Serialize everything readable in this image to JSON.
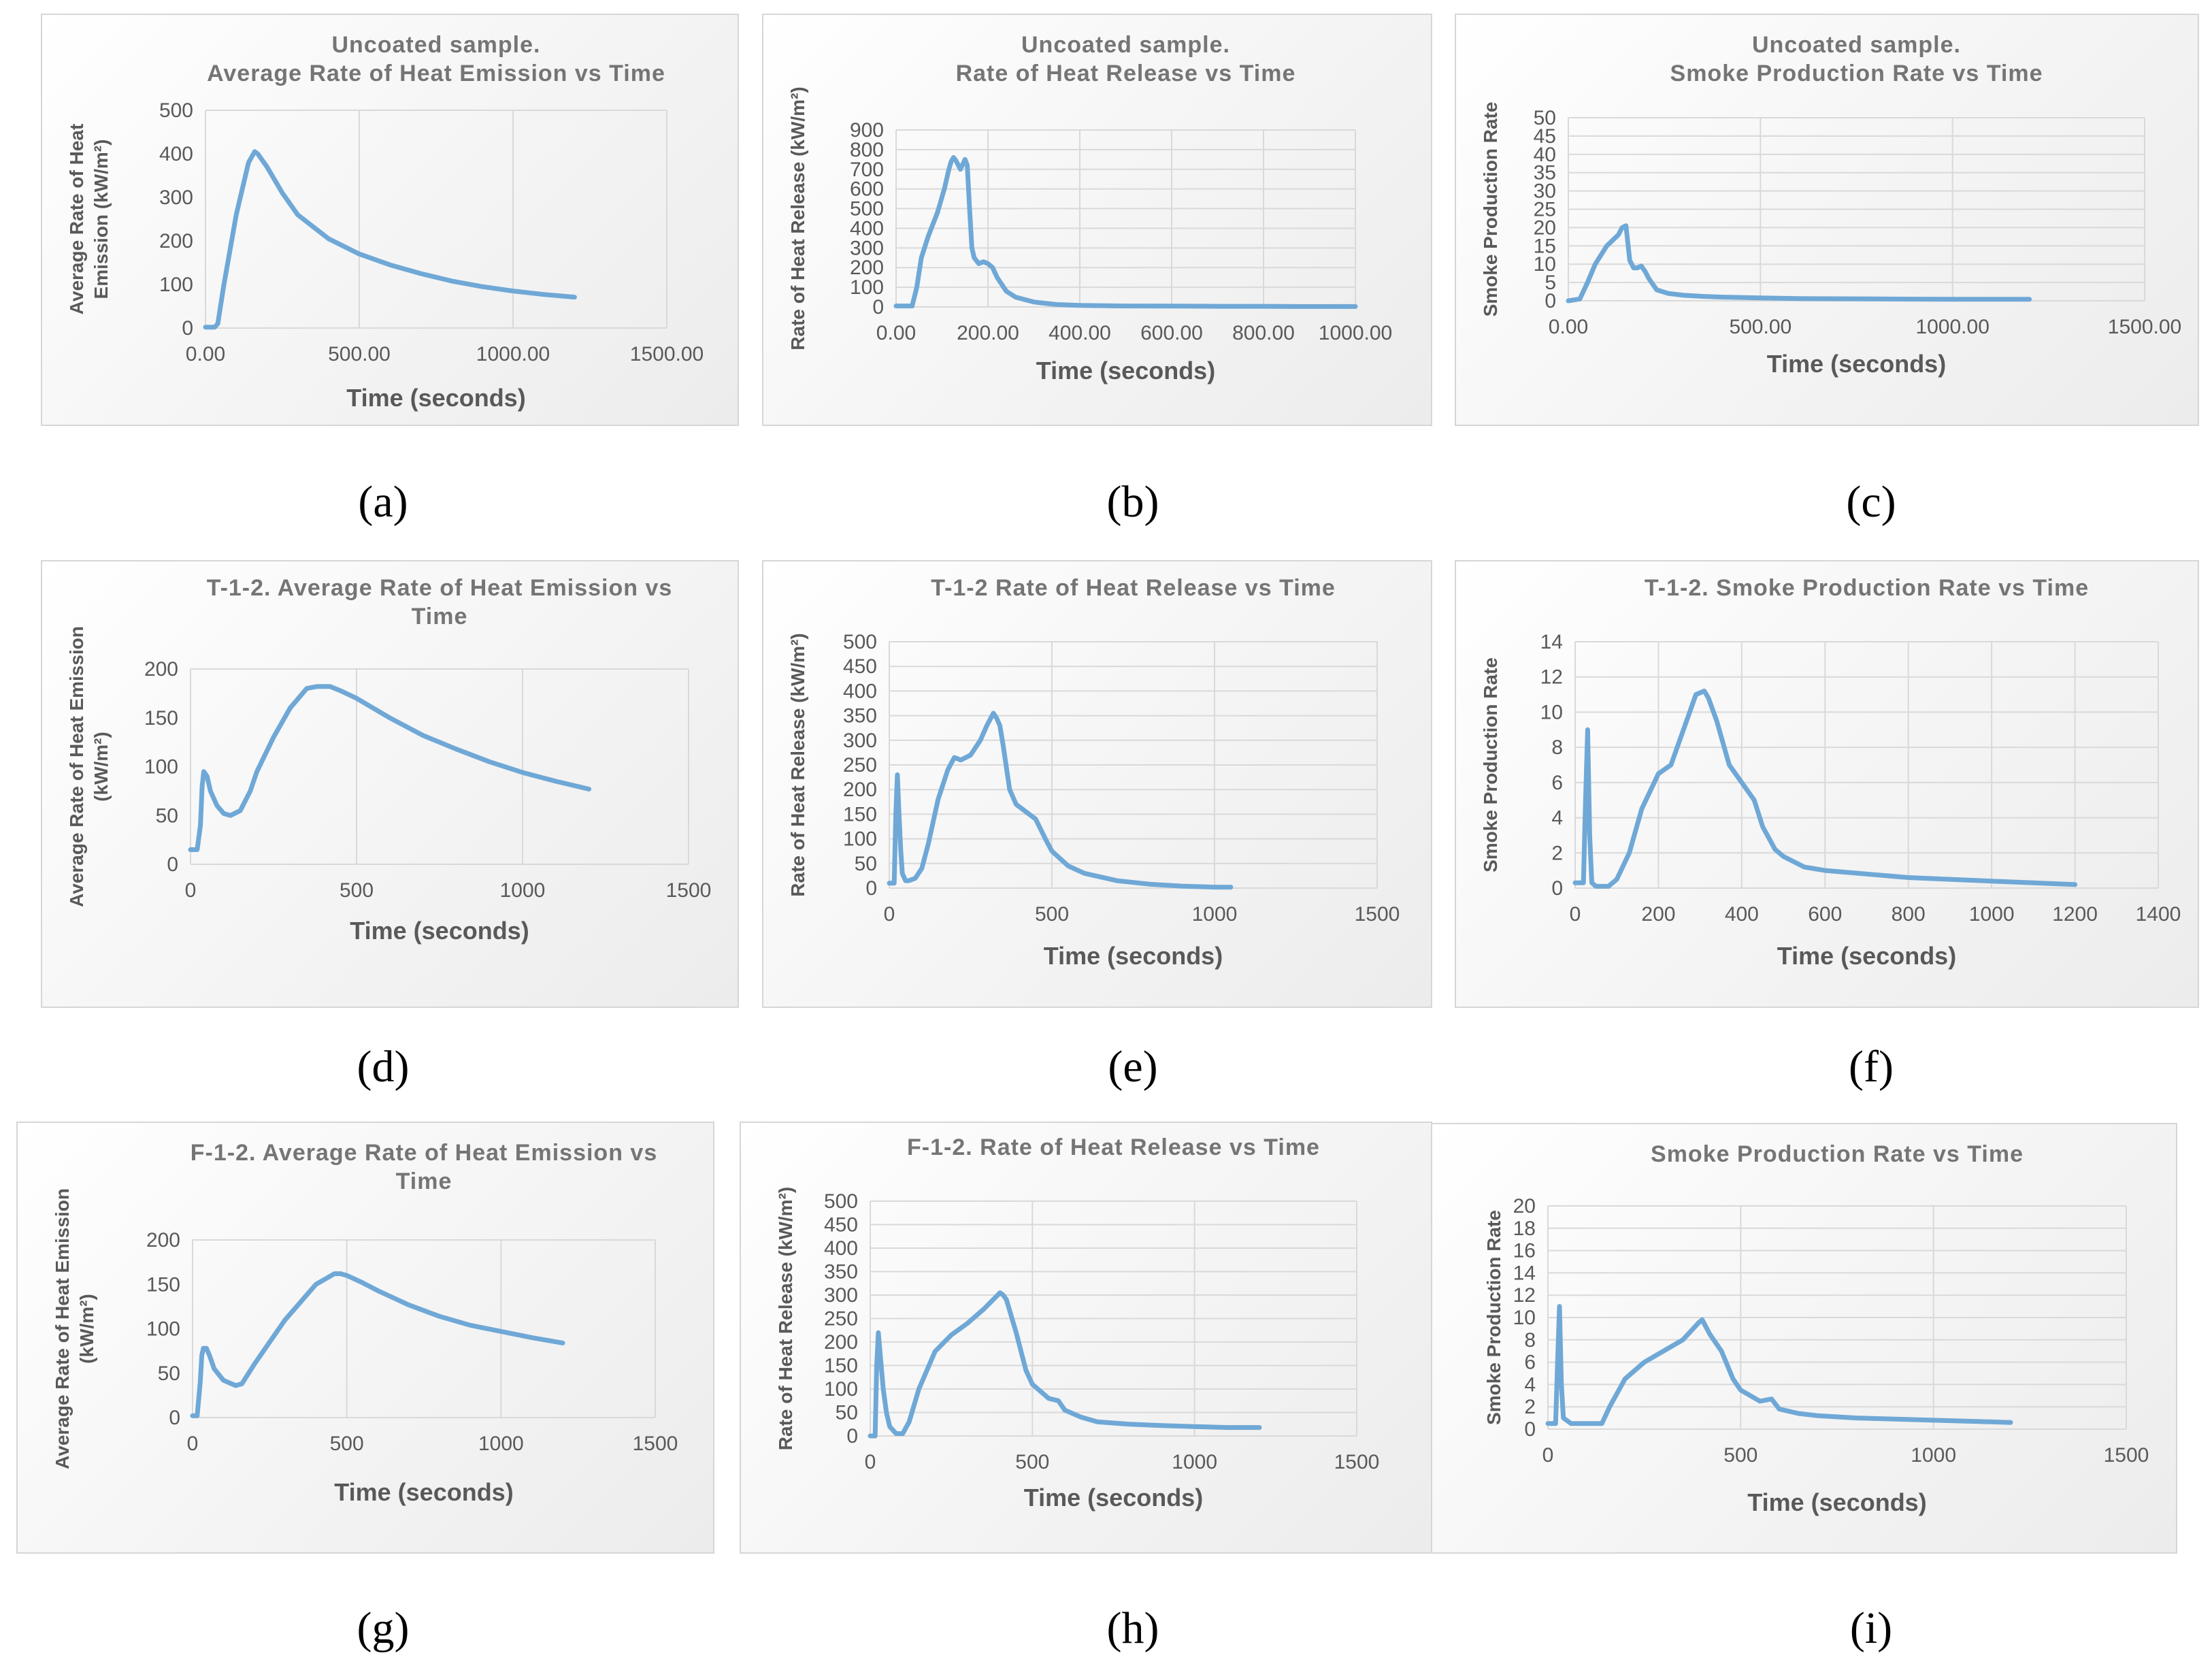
{
  "series_color": "#6fa8d6",
  "chart_data": [
    {
      "id": "a",
      "caption": "(a)",
      "type": "line",
      "title": [
        "Uncoated sample.",
        "Average Rate of Heat Emission vs Time"
      ],
      "xlabel": "Time (seconds)",
      "ylabel": [
        "Average Rate of Heat",
        "Emission (kW/m²)"
      ],
      "xlim": [
        0,
        1500
      ],
      "xticks": [
        0,
        500,
        1000,
        1500
      ],
      "xtick_labels": [
        "0.00",
        "500.00",
        "1000.00",
        "1500.00"
      ],
      "ylim": [
        0,
        500
      ],
      "yticks": [
        0,
        100,
        200,
        300,
        400,
        500
      ],
      "grid": "vertical",
      "x": [
        0,
        30,
        40,
        60,
        100,
        140,
        160,
        170,
        200,
        250,
        300,
        400,
        500,
        600,
        700,
        800,
        900,
        1000,
        1100,
        1200
      ],
      "y": [
        2,
        2,
        10,
        100,
        260,
        380,
        405,
        400,
        370,
        310,
        260,
        205,
        170,
        145,
        125,
        108,
        95,
        85,
        77,
        71
      ]
    },
    {
      "id": "b",
      "caption": "(b)",
      "type": "line",
      "title": [
        "Uncoated sample.",
        "Rate of Heat Release vs Time"
      ],
      "xlabel": "Time (seconds)",
      "ylabel": [
        "Rate of Heat Release (kW/m²)"
      ],
      "xlim": [
        0,
        1000
      ],
      "xticks": [
        0,
        200,
        400,
        600,
        800,
        1000
      ],
      "xtick_labels": [
        "0.00",
        "200.00",
        "400.00",
        "600.00",
        "800.00",
        "1000.00"
      ],
      "ylim": [
        0,
        900
      ],
      "yticks": [
        0,
        100,
        200,
        300,
        400,
        500,
        600,
        700,
        800,
        900
      ],
      "grid": "both",
      "x": [
        0,
        35,
        45,
        55,
        70,
        90,
        105,
        115,
        120,
        125,
        130,
        140,
        150,
        155,
        160,
        165,
        170,
        180,
        190,
        200,
        210,
        220,
        240,
        260,
        300,
        350,
        400,
        500,
        600,
        700,
        800,
        900,
        1000
      ],
      "y": [
        5,
        5,
        100,
        250,
        360,
        480,
        600,
        700,
        740,
        760,
        745,
        700,
        750,
        720,
        500,
        300,
        250,
        220,
        230,
        220,
        200,
        150,
        80,
        50,
        25,
        12,
        8,
        5,
        4,
        3,
        3,
        2,
        2
      ]
    },
    {
      "id": "c",
      "caption": "(c)",
      "type": "line",
      "title": [
        "Uncoated sample.",
        "Smoke Production Rate vs Time"
      ],
      "xlabel": "Time (seconds)",
      "ylabel": [
        "Smoke Production Rate"
      ],
      "xlim": [
        0,
        1500
      ],
      "xticks": [
        0,
        500,
        1000,
        1500
      ],
      "xtick_labels": [
        "0.00",
        "500.00",
        "1000.00",
        "1500.00"
      ],
      "ylim": [
        0,
        50
      ],
      "yticks": [
        0,
        5,
        10,
        15,
        20,
        25,
        30,
        35,
        40,
        45,
        50
      ],
      "grid": "both",
      "x": [
        0,
        30,
        50,
        70,
        100,
        130,
        140,
        150,
        160,
        170,
        180,
        190,
        200,
        210,
        230,
        260,
        300,
        350,
        400,
        500,
        600,
        800,
        1000,
        1200
      ],
      "y": [
        0,
        0.5,
        5,
        10,
        15,
        18,
        20,
        20.5,
        11,
        9,
        9,
        9.5,
        8,
        6,
        3,
        2,
        1.5,
        1.2,
        1,
        0.8,
        0.6,
        0.5,
        0.4,
        0.4
      ]
    },
    {
      "id": "d",
      "caption": "(d)",
      "type": "line",
      "title": [
        "T-1-2. Average Rate of Heat Emission vs",
        "Time"
      ],
      "xlabel": "Time (seconds)",
      "ylabel": [
        "Average Rate of Heat Emission",
        "(kW/m²)"
      ],
      "xlim": [
        0,
        1500
      ],
      "xticks": [
        0,
        500,
        1000,
        1500
      ],
      "xtick_labels": [
        "0",
        "500",
        "1000",
        "1500"
      ],
      "ylim": [
        0,
        200
      ],
      "yticks": [
        0,
        50,
        100,
        150,
        200
      ],
      "grid": "vertical",
      "x": [
        0,
        20,
        30,
        35,
        40,
        50,
        60,
        80,
        100,
        120,
        150,
        180,
        200,
        250,
        300,
        350,
        380,
        420,
        450,
        500,
        600,
        700,
        800,
        900,
        1000,
        1100,
        1200
      ],
      "y": [
        15,
        15,
        40,
        80,
        95,
        90,
        75,
        60,
        52,
        50,
        55,
        75,
        95,
        130,
        160,
        180,
        182,
        182,
        178,
        170,
        150,
        132,
        118,
        105,
        94,
        85,
        77
      ]
    },
    {
      "id": "e",
      "caption": "(e)",
      "type": "line",
      "title": [
        "T-1-2 Rate of Heat Release vs Time"
      ],
      "xlabel": "Time (seconds)",
      "ylabel": [
        "Rate of Heat Release (kW/m²)"
      ],
      "xlim": [
        0,
        1500
      ],
      "xticks": [
        0,
        500,
        1000,
        1500
      ],
      "xtick_labels": [
        "0",
        "500",
        "1000",
        "1500"
      ],
      "ylim": [
        0,
        500
      ],
      "yticks": [
        0,
        50,
        100,
        150,
        200,
        250,
        300,
        350,
        400,
        450,
        500
      ],
      "grid": "both",
      "x": [
        0,
        15,
        20,
        25,
        30,
        35,
        40,
        50,
        60,
        80,
        100,
        120,
        150,
        180,
        200,
        220,
        250,
        280,
        300,
        320,
        330,
        340,
        350,
        370,
        390,
        420,
        450,
        480,
        500,
        550,
        600,
        700,
        800,
        900,
        1000,
        1050
      ],
      "y": [
        10,
        10,
        150,
        230,
        150,
        80,
        30,
        15,
        15,
        20,
        40,
        90,
        180,
        240,
        265,
        260,
        270,
        300,
        330,
        355,
        345,
        330,
        290,
        200,
        170,
        155,
        140,
        100,
        75,
        45,
        30,
        15,
        8,
        4,
        2,
        2
      ]
    },
    {
      "id": "f",
      "caption": "(f)",
      "type": "line",
      "title": [
        "T-1-2. Smoke Production Rate vs Time"
      ],
      "xlabel": "Time (seconds)",
      "ylabel": [
        "Smoke Production Rate"
      ],
      "xlim": [
        0,
        1400
      ],
      "xticks": [
        0,
        200,
        400,
        600,
        800,
        1000,
        1200,
        1400
      ],
      "xtick_labels": [
        "0",
        "200",
        "400",
        "600",
        "800",
        "1000",
        "1200",
        "1400"
      ],
      "ylim": [
        0,
        14
      ],
      "yticks": [
        0,
        2,
        4,
        6,
        8,
        10,
        12,
        14
      ],
      "grid": "both",
      "x": [
        0,
        20,
        25,
        30,
        35,
        40,
        50,
        80,
        100,
        130,
        160,
        200,
        230,
        260,
        290,
        310,
        320,
        340,
        370,
        400,
        430,
        450,
        480,
        500,
        550,
        600,
        700,
        800,
        900,
        1000,
        1100,
        1200
      ],
      "y": [
        0.3,
        0.3,
        5,
        9,
        3,
        0.3,
        0.1,
        0.1,
        0.5,
        2,
        4.5,
        6.5,
        7,
        9,
        11,
        11.2,
        10.8,
        9.5,
        7,
        6,
        5,
        3.5,
        2.2,
        1.8,
        1.2,
        1,
        0.8,
        0.6,
        0.5,
        0.4,
        0.3,
        0.2
      ]
    },
    {
      "id": "g",
      "caption": "(g)",
      "type": "line",
      "title": [
        "F-1-2. Average Rate of Heat Emission vs",
        "Time"
      ],
      "xlabel": "Time (seconds)",
      "ylabel": [
        "Average Rate of Heat Emission",
        "(kW/m²)"
      ],
      "xlim": [
        0,
        1500
      ],
      "xticks": [
        0,
        500,
        1000,
        1500
      ],
      "xtick_labels": [
        "0",
        "500",
        "1000",
        "1500"
      ],
      "ylim": [
        0,
        200
      ],
      "yticks": [
        0,
        50,
        100,
        150,
        200
      ],
      "grid": "vertical",
      "x": [
        0,
        15,
        25,
        30,
        35,
        45,
        55,
        70,
        100,
        140,
        160,
        200,
        300,
        400,
        460,
        480,
        500,
        550,
        600,
        700,
        800,
        900,
        1000,
        1100,
        1200
      ],
      "y": [
        2,
        2,
        40,
        70,
        78,
        78,
        70,
        55,
        42,
        36,
        38,
        60,
        110,
        150,
        162,
        162,
        160,
        152,
        143,
        127,
        114,
        104,
        97,
        90,
        84
      ]
    },
    {
      "id": "h",
      "caption": "(h)",
      "type": "line",
      "title": [
        "F-1-2. Rate of Heat Release vs Time"
      ],
      "xlabel": "Time (seconds)",
      "ylabel": [
        "Rate of Heat Release (kW/m²)"
      ],
      "xlim": [
        0,
        1500
      ],
      "xticks": [
        0,
        500,
        1000,
        1500
      ],
      "xtick_labels": [
        "0",
        "500",
        "1000",
        "1500"
      ],
      "ylim": [
        0,
        500
      ],
      "yticks": [
        0,
        50,
        100,
        150,
        200,
        250,
        300,
        350,
        400,
        450,
        500
      ],
      "grid": "both",
      "x": [
        0,
        15,
        20,
        25,
        30,
        40,
        50,
        60,
        80,
        100,
        120,
        150,
        200,
        250,
        300,
        350,
        400,
        410,
        420,
        450,
        480,
        500,
        550,
        580,
        600,
        650,
        700,
        800,
        900,
        1000,
        1100,
        1200
      ],
      "y": [
        0,
        0,
        150,
        220,
        180,
        100,
        50,
        20,
        5,
        5,
        30,
        100,
        180,
        215,
        240,
        270,
        305,
        300,
        290,
        220,
        140,
        110,
        80,
        75,
        55,
        40,
        30,
        25,
        22,
        20,
        18,
        18
      ]
    },
    {
      "id": "i",
      "caption": "(i)",
      "type": "line",
      "title": [
        "Smoke Production Rate vs Time"
      ],
      "xlabel": "Time (seconds)",
      "ylabel": [
        "Smoke Production Rate"
      ],
      "xlim": [
        0,
        1500
      ],
      "xticks": [
        0,
        500,
        1000,
        1500
      ],
      "xtick_labels": [
        "0",
        "500",
        "1000",
        "1500"
      ],
      "ylim": [
        0,
        20
      ],
      "yticks": [
        0,
        2,
        4,
        6,
        8,
        10,
        12,
        14,
        16,
        18,
        20
      ],
      "grid": "both",
      "x": [
        0,
        20,
        25,
        30,
        35,
        40,
        60,
        100,
        140,
        160,
        200,
        250,
        300,
        350,
        390,
        400,
        420,
        450,
        480,
        500,
        550,
        580,
        600,
        650,
        700,
        800,
        900,
        1000,
        1100,
        1200
      ],
      "y": [
        0.5,
        0.5,
        6,
        11,
        4,
        1,
        0.5,
        0.5,
        0.5,
        2,
        4.5,
        6,
        7,
        8,
        9.5,
        9.8,
        8.5,
        7,
        4.5,
        3.5,
        2.5,
        2.7,
        1.8,
        1.4,
        1.2,
        1,
        0.9,
        0.8,
        0.7,
        0.6
      ]
    }
  ]
}
